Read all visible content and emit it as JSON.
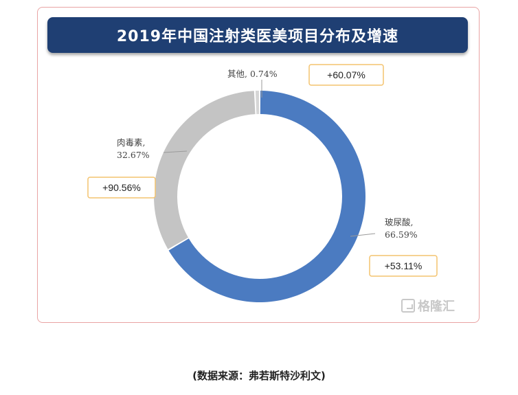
{
  "chart_data": {
    "type": "pie",
    "title": "2019年中国注射类医美项目分布及增速",
    "slices": [
      {
        "label": "玻尿酸,",
        "percent_text": "66.59%",
        "value": 66.59,
        "growth": "+53.11%",
        "color": "#4b7bc1"
      },
      {
        "label": "肉毒素,",
        "percent_text": "32.67%",
        "value": 32.67,
        "growth": "+90.56%",
        "color": "#c4c4c4"
      },
      {
        "label": "其他,",
        "percent_text": "0.74%",
        "value": 0.74,
        "growth": "+60.07%",
        "color": "#d6d6d6"
      }
    ],
    "legend": "none"
  },
  "source": "(数据来源：弗若斯特沙利文)",
  "watermark": "格隆汇",
  "colors": {
    "title_bar": "#1f3f73",
    "badge_border": "#f4c36f",
    "frame_border": "#e9a3a3"
  }
}
